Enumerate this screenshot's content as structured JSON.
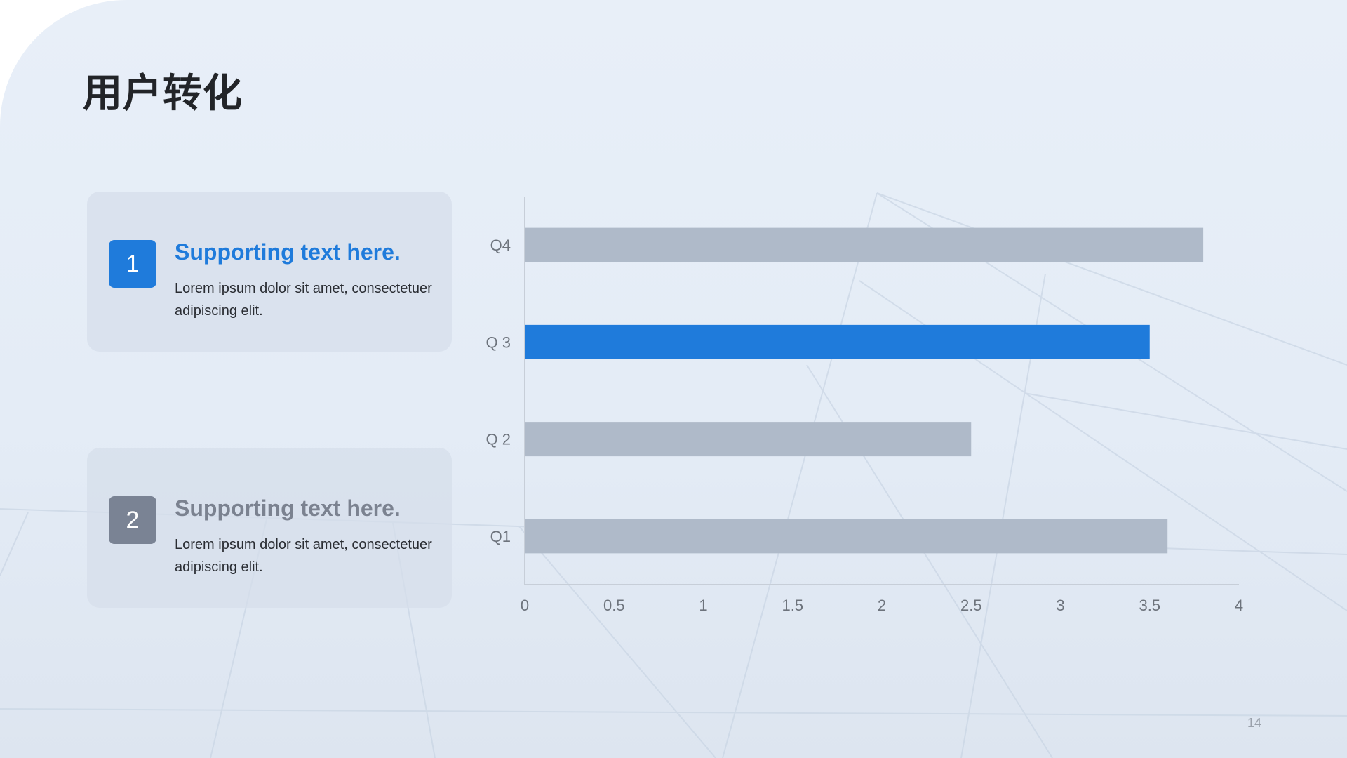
{
  "slide": {
    "title": "用户转化",
    "page_number": "14"
  },
  "cards": [
    {
      "number": "1",
      "heading": "Supporting text here.",
      "body": "Lorem ipsum dolor sit amet, consectetuer adipiscing elit."
    },
    {
      "number": "2",
      "heading": "Supporting text here.",
      "body": "Lorem ipsum dolor sit amet, consectetuer adipiscing elit."
    }
  ],
  "colors": {
    "accent": "#1f7bdb",
    "bar_default": "#afbac9",
    "muted_badge": "#7a8394"
  },
  "chart_data": {
    "type": "bar",
    "orientation": "horizontal",
    "categories": [
      "Q4",
      "Q 3",
      "Q 2",
      "Q1"
    ],
    "values": [
      3.8,
      3.5,
      2.5,
      3.6
    ],
    "highlight": "Q 3",
    "xlim": [
      0,
      4
    ],
    "xticks": [
      "0",
      "0.5",
      "1",
      "1.5",
      "2",
      "2.5",
      "3",
      "3.5",
      "4"
    ],
    "grid": false,
    "legend": "none"
  }
}
